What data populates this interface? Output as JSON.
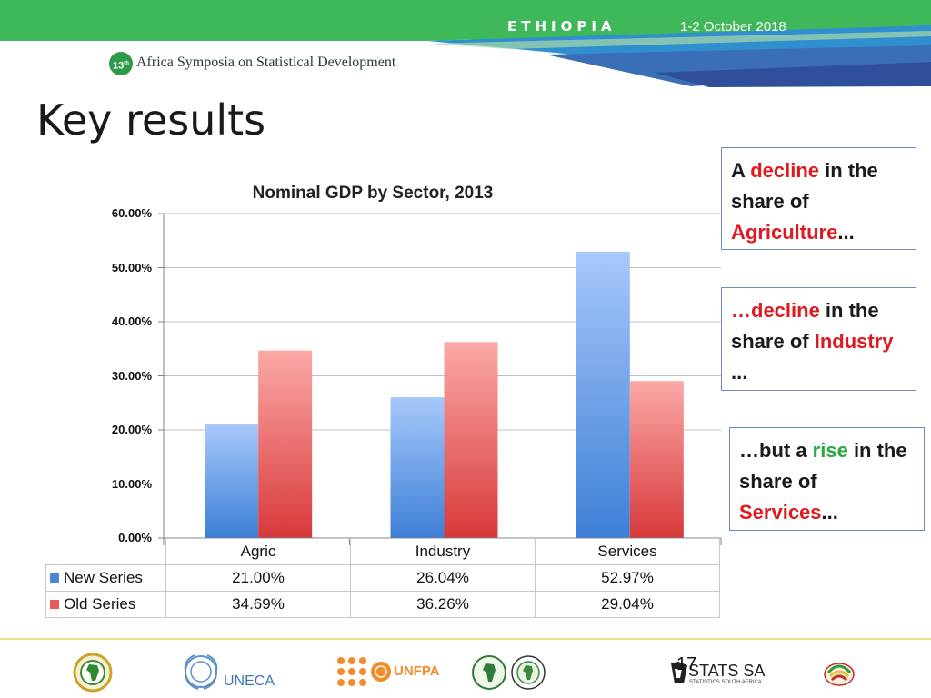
{
  "header": {
    "country": "ETHIOPIA",
    "dates": "1-2 October 2018",
    "badge": "13",
    "badge_sup": "th",
    "symposium": "Africa Symposia on Statistical Development"
  },
  "slide_title": "Key results",
  "chart_data": {
    "type": "bar",
    "title": "Nominal GDP by Sector, 2013",
    "categories": [
      "Agric",
      "Industry",
      "Services"
    ],
    "series": [
      {
        "name": "New Series",
        "values": [
          21.0,
          26.04,
          52.97
        ],
        "labels": [
          "21.00%",
          "26.04%",
          "52.97%"
        ],
        "color_top": "#a7c8fb",
        "color_bottom": "#3d7fd6"
      },
      {
        "name": "Old Series",
        "values": [
          34.69,
          36.26,
          29.04
        ],
        "labels": [
          "34.69%",
          "36.26%",
          "29.04%"
        ],
        "color_top": "#fba9a7",
        "color_bottom": "#d8393a"
      }
    ],
    "ylim": [
      0,
      60
    ],
    "yticks": [
      "0.00%",
      "10.00%",
      "20.00%",
      "30.00%",
      "40.00%",
      "50.00%",
      "60.00%"
    ],
    "grid": true,
    "legend": "data table below chart"
  },
  "callouts": [
    {
      "pre": "A ",
      "hl": "decline",
      "mid": " in the share of ",
      "hl2": "Agriculture",
      "post": "..."
    },
    {
      "pre": "…",
      "hl": "decline",
      "mid": " in the share of ",
      "hl2": "Industry",
      "post": " ..."
    },
    {
      "pre": "…but a ",
      "hl": "rise",
      "mid": " in the share of ",
      "hl2": "Services",
      "post": "..."
    }
  ],
  "footer": {
    "uneca": "UNECA",
    "unfpa": "UNFPA",
    "stats_sa": "STATS SA",
    "stats_sa_sub": "STATISTICS SOUTH AFRICA",
    "page": "17"
  }
}
